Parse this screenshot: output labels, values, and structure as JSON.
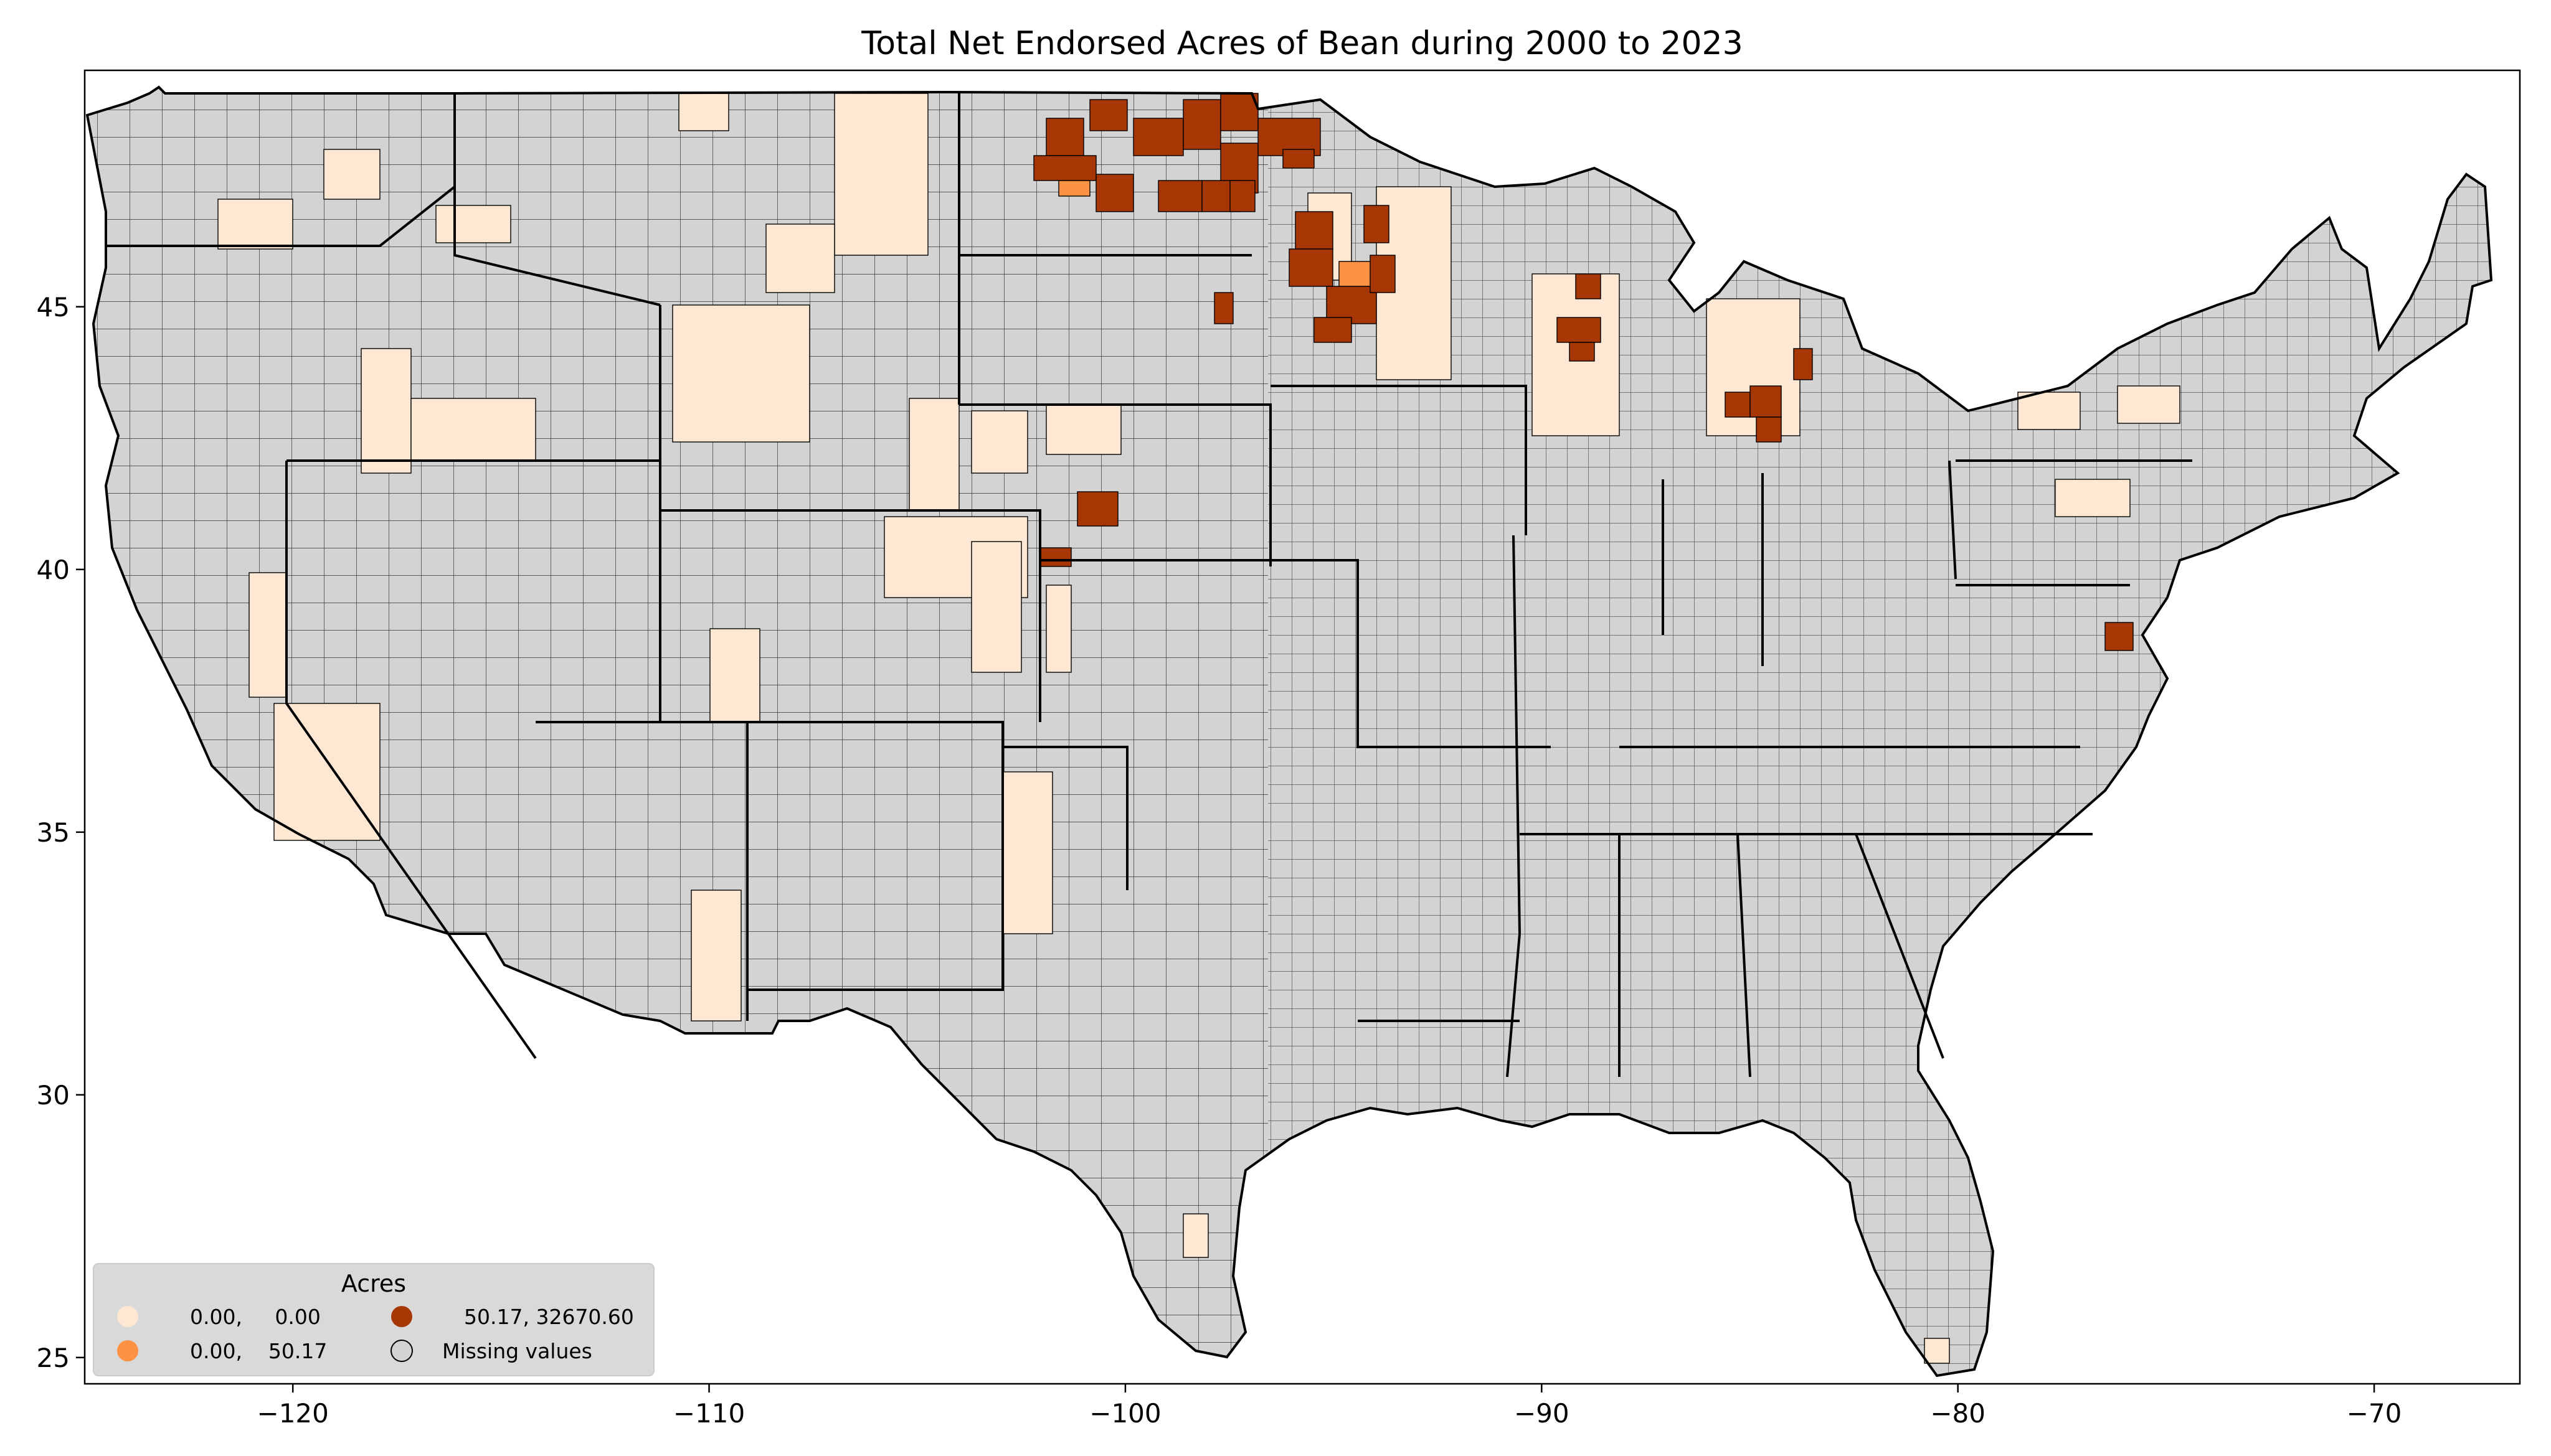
{
  "map": {
    "title": "Total Net Endorsed Acres of Bean during 2000 to 2023",
    "lon_range": [
      -125,
      -66.5
    ],
    "lat_range": [
      24.5,
      49.5
    ],
    "x_ticks": [
      {
        "value": -120,
        "label": "−120"
      },
      {
        "value": -110,
        "label": "−110"
      },
      {
        "value": -100,
        "label": "−100"
      },
      {
        "value": -90,
        "label": "−90"
      },
      {
        "value": -80,
        "label": "−80"
      },
      {
        "value": -70,
        "label": "−70"
      }
    ],
    "y_ticks": [
      {
        "value": 25,
        "label": "25"
      },
      {
        "value": 30,
        "label": "30"
      },
      {
        "value": 35,
        "label": "35"
      },
      {
        "value": 40,
        "label": "40"
      },
      {
        "value": 45,
        "label": "45"
      }
    ],
    "colors": {
      "missing": "#d3d3d3",
      "low": "#fee8d4",
      "mid": "#fd9144",
      "high": "#a63603",
      "border": "#000000"
    }
  },
  "legend": {
    "title": "Acres",
    "items": [
      {
        "label": "0.00,     0.00",
        "color": "#fee8d4",
        "outline": false
      },
      {
        "label": "0.00,    50.17",
        "color": "#fd9144",
        "outline": false
      },
      {
        "label": "50.17, 32670.60",
        "color": "#a63603",
        "outline": false
      },
      {
        "label": "Missing values",
        "color": "#d3d3d3",
        "outline": true
      }
    ]
  }
}
